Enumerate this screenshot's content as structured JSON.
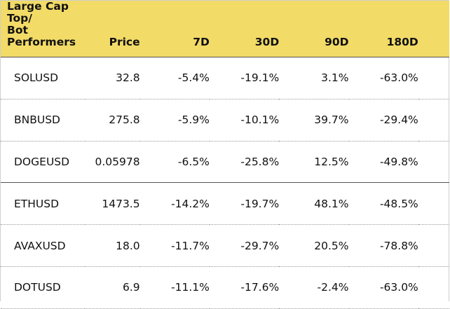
{
  "table": {
    "header_color": "#f2db67",
    "columns": [
      "Large Cap Top/\nBot Performers",
      "Price",
      "7D",
      "30D",
      "90D",
      "180D"
    ],
    "rows": [
      {
        "symbol": "SOLUSD",
        "price": "32.8",
        "d7": "-5.4%",
        "d30": "-19.1%",
        "d90": "3.1%",
        "d180": "-63.0%"
      },
      {
        "symbol": "BNBUSD",
        "price": "275.8",
        "d7": "-5.9%",
        "d30": "-10.1%",
        "d90": "39.7%",
        "d180": "-29.4%"
      },
      {
        "symbol": "DOGEUSD",
        "price": "0.05978",
        "d7": "-6.5%",
        "d30": "-25.8%",
        "d90": "12.5%",
        "d180": "-49.8%"
      },
      {
        "symbol": "ETHUSD",
        "price": "1473.5",
        "d7": "-14.2%",
        "d30": "-19.7%",
        "d90": "48.1%",
        "d180": "-48.5%"
      },
      {
        "symbol": "AVAXUSD",
        "price": "18.0",
        "d7": "-11.7%",
        "d30": "-29.7%",
        "d90": "20.5%",
        "d180": "-78.8%"
      },
      {
        "symbol": "DOTUSD",
        "price": "6.9",
        "d7": "-11.1%",
        "d30": "-17.6%",
        "d90": "-2.4%",
        "d180": "-63.0%"
      }
    ]
  }
}
